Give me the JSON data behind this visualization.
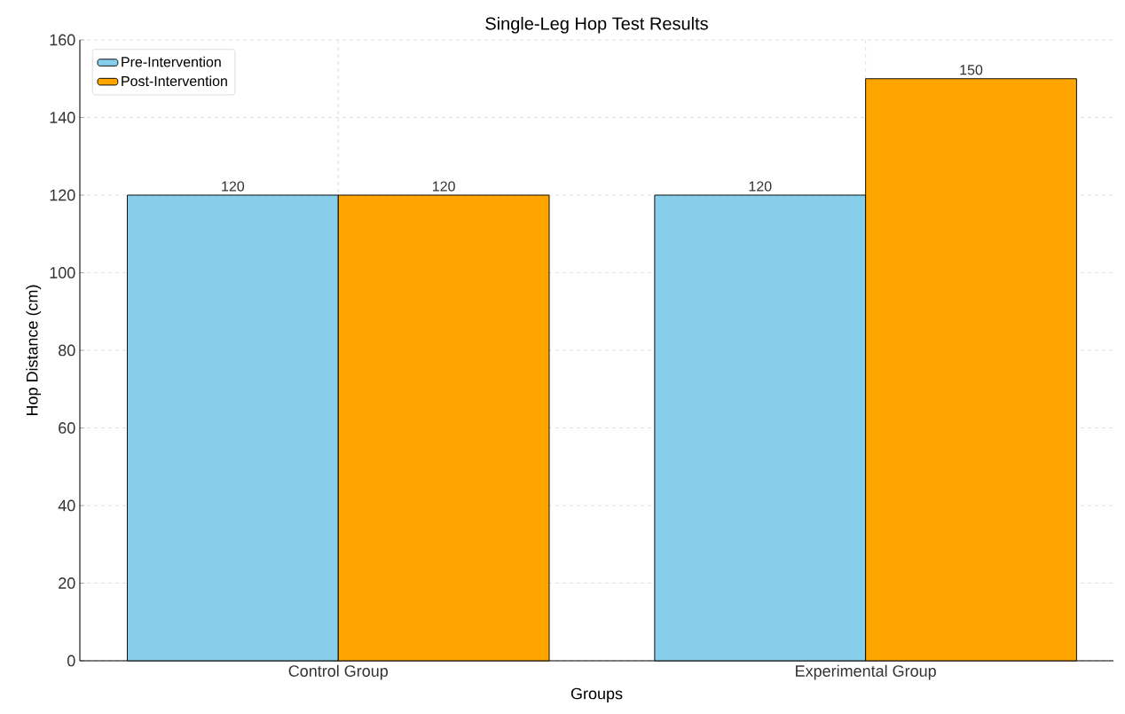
{
  "chart_data": {
    "type": "bar",
    "title": "Single-Leg Hop Test Results",
    "xlabel": "Groups",
    "ylabel": "Hop Distance (cm)",
    "categories": [
      "Control Group",
      "Experimental Group"
    ],
    "series": [
      {
        "name": "Pre-Intervention",
        "color": "#87ceeb",
        "values": [
          120,
          120
        ]
      },
      {
        "name": "Post-Intervention",
        "color": "#ffa500",
        "values": [
          120,
          150
        ]
      }
    ],
    "ylim": [
      0,
      160
    ],
    "yticks": [
      0,
      20,
      40,
      60,
      80,
      100,
      120,
      140,
      160
    ],
    "grid": true,
    "legend": "top left",
    "data_labels": true
  }
}
